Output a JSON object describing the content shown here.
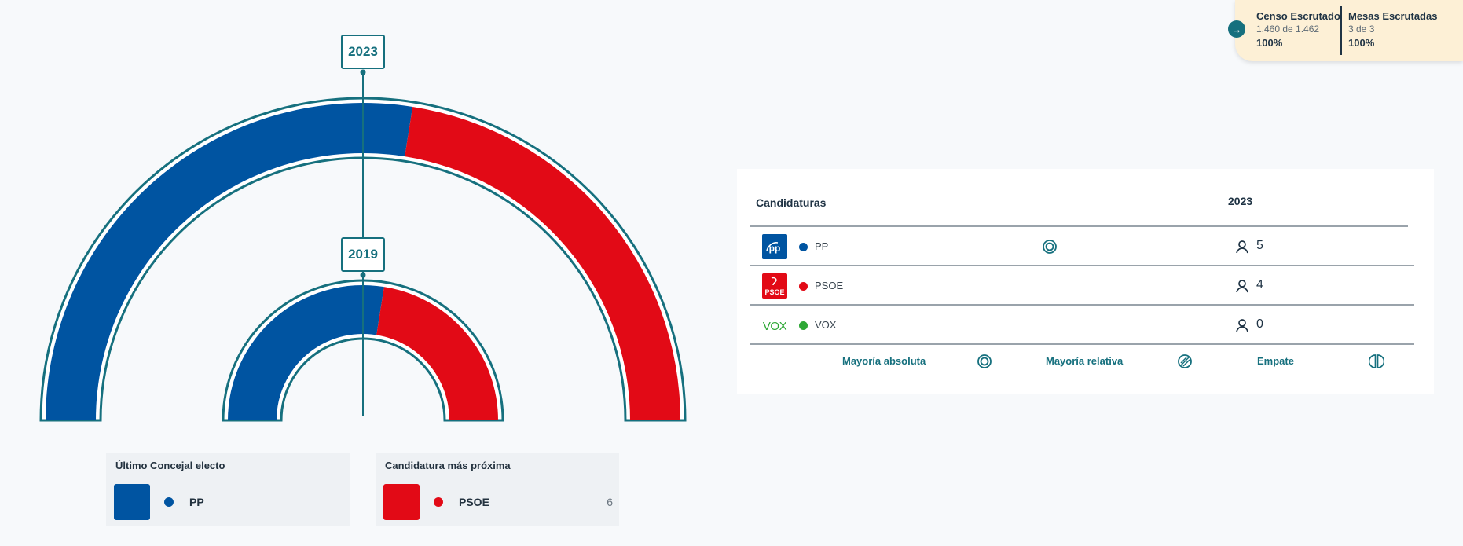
{
  "hemicycle": {
    "outer_label": "2023",
    "inner_label": "2019",
    "outer_share_pp": 0.55,
    "inner_share_pp": 0.55,
    "colors": {
      "pp": "#0054a1",
      "psoe": "#e20a16",
      "frame": "#16707e"
    }
  },
  "last_elected": {
    "title": "Último Concejal electo",
    "party": "PP",
    "color": "#0054a1"
  },
  "closest_candidate": {
    "title": "Candidatura más próxima",
    "party": "PSOE",
    "count": "6",
    "color": "#e20a16"
  },
  "scrutiny": {
    "census": {
      "label": "Censo Escrutado",
      "detail": "1.460 de 1.462",
      "percent": "100%"
    },
    "tables": {
      "label": "Mesas Escrutadas",
      "detail": "3 de 3",
      "percent": "100%"
    }
  },
  "results": {
    "header_candidates": "Candidaturas",
    "header_year": "2023",
    "rows": [
      {
        "logo": "pp-logo",
        "name": "PP",
        "color": "#0054a1",
        "seats": "5",
        "majority": "absolute"
      },
      {
        "logo": "psoe-logo",
        "name": "PSOE",
        "color": "#e20a16",
        "seats": "4",
        "majority": ""
      },
      {
        "logo": "vox-logo",
        "name": "VOX",
        "color": "#2ea836",
        "seats": "0",
        "majority": ""
      }
    ],
    "legend": {
      "absolute": "Mayoría absoluta",
      "relative": "Mayoría relativa",
      "tie": "Empate"
    }
  }
}
